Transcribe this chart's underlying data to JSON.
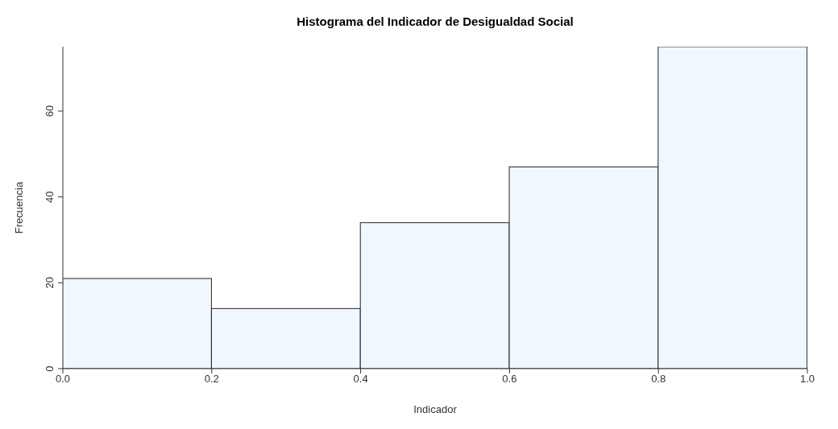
{
  "chart_data": {
    "type": "histogram",
    "title": "Histograma del Indicador de Desigualdad Social",
    "xlabel": "Indicador",
    "ylabel": "Frecuencia",
    "bins": [
      0,
      0.2,
      0.4,
      0.6,
      0.8,
      1
    ],
    "values": [
      21,
      14,
      34,
      47,
      75
    ],
    "color": "#f0f8ff",
    "xlim": [
      0,
      1
    ],
    "xticks": [
      {
        "value": 0,
        "label": "0.0"
      },
      0.2,
      0.4,
      0.6,
      0.8,
      {
        "value": 1,
        "label": "1.0"
      }
    ],
    "ylim": [
      0,
      75
    ],
    "yticks": [
      0,
      20,
      40,
      60
    ],
    "grid": false,
    "legend": false
  }
}
